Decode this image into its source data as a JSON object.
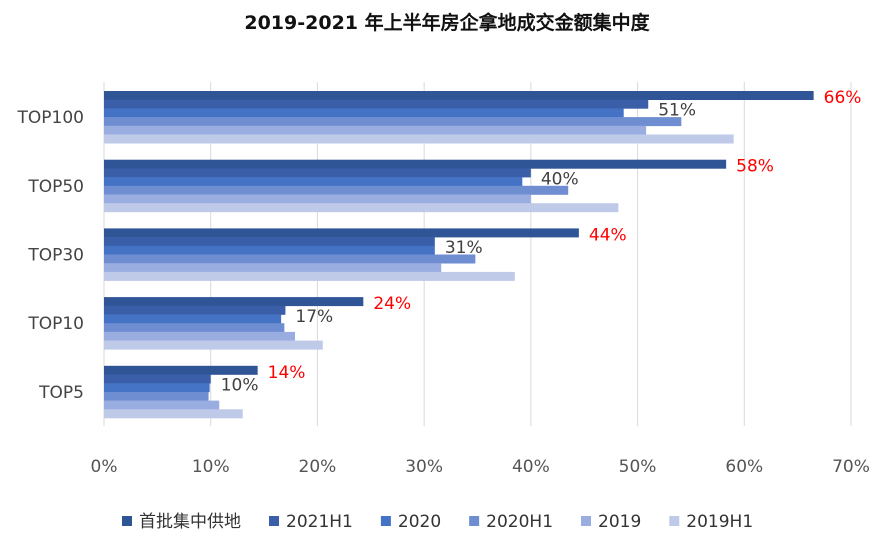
{
  "chart_data": {
    "type": "bar",
    "orientation": "horizontal",
    "title": "2019-2021 年上半年房企拿地成交金额集中度",
    "categories": [
      "TOP100",
      "TOP50",
      "TOP30",
      "TOP10",
      "TOP5"
    ],
    "series": [
      {
        "name": "首批集中供地",
        "values": [
          66.5,
          58.3,
          44.5,
          24.3,
          14.4
        ],
        "color": "#2F5597"
      },
      {
        "name": "2021H1",
        "values": [
          51,
          40,
          31,
          17,
          10
        ],
        "color": "#3A5FA8"
      },
      {
        "name": "2020",
        "values": [
          48.7,
          39.2,
          31.0,
          16.6,
          9.9
        ],
        "color": "#4472C4"
      },
      {
        "name": "2020H1",
        "values": [
          54.1,
          43.5,
          34.8,
          16.9,
          9.8
        ],
        "color": "#6F8ED2"
      },
      {
        "name": "2019",
        "values": [
          50.8,
          40.0,
          31.6,
          17.9,
          10.8
        ],
        "color": "#9AADE0"
      },
      {
        "name": "2019H1",
        "values": [
          59.0,
          48.2,
          38.5,
          20.5,
          13.0
        ],
        "color": "#BFCAE9"
      }
    ],
    "data_labels": [
      {
        "series": "首批集中供地",
        "labels": [
          "66%",
          "58%",
          "44%",
          "24%",
          "14%"
        ],
        "color": "#FF0000"
      },
      {
        "series": "2021H1",
        "labels": [
          "51%",
          "40%",
          "31%",
          "17%",
          "10%"
        ],
        "color": "#404040"
      }
    ],
    "xlim": [
      0,
      70
    ],
    "xticks": [
      "0%",
      "10%",
      "20%",
      "30%",
      "40%",
      "50%",
      "60%",
      "70%"
    ],
    "grid": true,
    "legend": "bottom"
  }
}
